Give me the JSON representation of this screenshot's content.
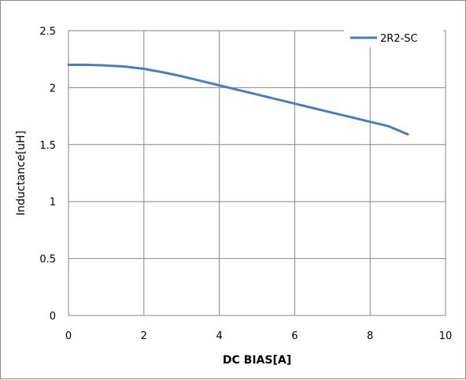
{
  "chart_data": {
    "type": "line",
    "title": "",
    "xlabel": "DC BIAS[A]",
    "ylabel": "Inductance[uH]",
    "xlim": [
      0,
      10
    ],
    "ylim": [
      0,
      2.5
    ],
    "x_ticks": [
      "0",
      "2",
      "4",
      "6",
      "8",
      "10"
    ],
    "y_ticks": [
      "0",
      "0.5",
      "1",
      "1.5",
      "2",
      "2.5"
    ],
    "grid": true,
    "legend_position": "top-right",
    "series": [
      {
        "name": "2R2-SC",
        "color": "#4a7ebb",
        "x": [
          0,
          0.5,
          1,
          1.5,
          2,
          2.5,
          3,
          3.5,
          4,
          4.5,
          5,
          5.5,
          6,
          6.5,
          7,
          7.5,
          8,
          8.5,
          9
        ],
        "y": [
          2.2,
          2.2,
          2.195,
          2.185,
          2.165,
          2.135,
          2.1,
          2.06,
          2.02,
          1.98,
          1.94,
          1.9,
          1.86,
          1.82,
          1.78,
          1.74,
          1.7,
          1.66,
          1.59
        ]
      }
    ]
  }
}
